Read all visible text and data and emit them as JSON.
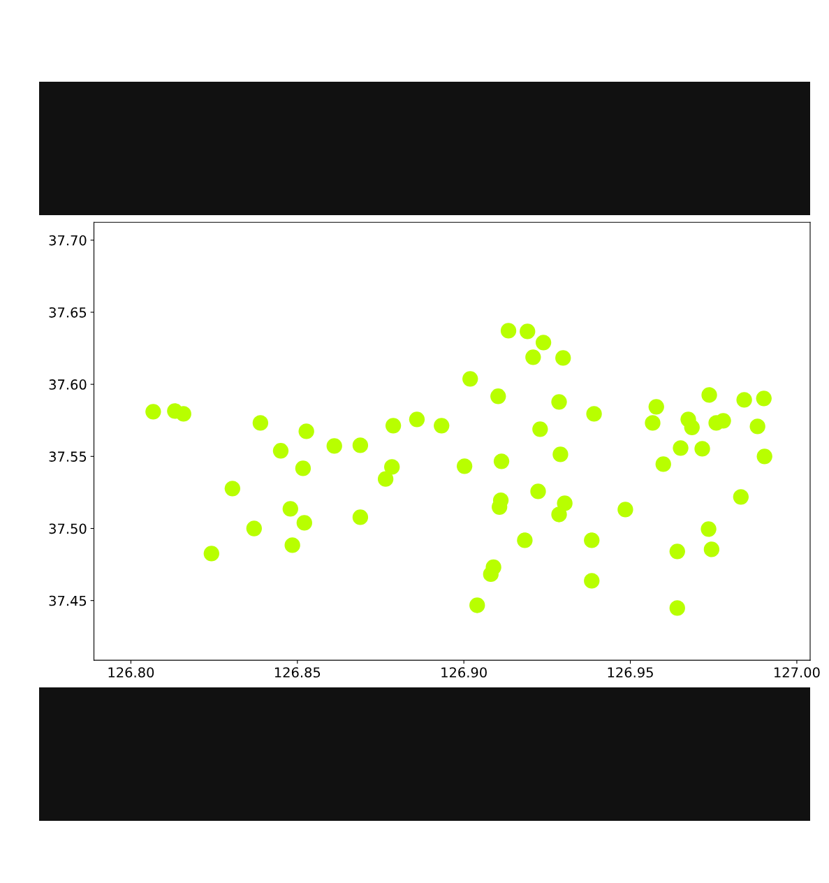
{
  "chart_data": {
    "type": "scatter",
    "color": "#b8ff00",
    "marker": "circle",
    "x": [
      126.8067,
      126.8132,
      126.8158,
      126.8389,
      126.8527,
      126.845,
      126.8611,
      126.8689,
      126.8517,
      126.8305,
      126.8479,
      126.8521,
      126.8689,
      126.837,
      126.8485,
      126.8242,
      126.8788,
      126.8859,
      126.8933,
      126.8784,
      126.8765,
      126.9002,
      126.9019,
      126.9103,
      126.9113,
      126.9134,
      126.9191,
      126.9239,
      126.9208,
      126.9298,
      126.9286,
      126.9229,
      126.929,
      126.9223,
      126.9111,
      126.9107,
      126.9303,
      126.9286,
      126.9183,
      126.9089,
      126.9081,
      126.904,
      126.9391,
      126.9384,
      126.9384,
      126.9578,
      126.9567,
      126.9599,
      126.9485,
      126.9737,
      126.9674,
      126.9685,
      126.9758,
      126.9779,
      126.9651,
      126.9716,
      126.9842,
      126.9901,
      126.9882,
      126.9903,
      126.9832,
      126.9735,
      126.9641,
      126.9744,
      126.9641
    ],
    "values": [
      37.581,
      37.5815,
      37.5795,
      37.5732,
      37.5674,
      37.5539,
      37.5572,
      37.5577,
      37.5417,
      37.5277,
      37.5136,
      37.5039,
      37.5078,
      37.5,
      37.4884,
      37.4826,
      37.5713,
      37.5757,
      37.5713,
      37.5427,
      37.5343,
      37.5432,
      37.6038,
      37.5917,
      37.5466,
      37.6372,
      37.6367,
      37.629,
      37.6188,
      37.6183,
      37.5878,
      37.5689,
      37.5514,
      37.5257,
      37.5196,
      37.5149,
      37.5175,
      37.5097,
      37.4918,
      37.4731,
      37.4683,
      37.4467,
      37.5795,
      37.4918,
      37.4637,
      37.5844,
      37.5732,
      37.5446,
      37.5131,
      37.5926,
      37.5757,
      37.5701,
      37.5732,
      37.5747,
      37.5558,
      37.5553,
      37.5892,
      37.5902,
      37.5708,
      37.55,
      37.5219,
      37.4996,
      37.4841,
      37.4855,
      37.4448
    ],
    "xlim": [
      126.7889,
      127.004
    ],
    "ylim": [
      37.4086,
      37.7124
    ],
    "xticks": [
      {
        "value": 126.8,
        "label": "126.80"
      },
      {
        "value": 126.85,
        "label": "126.85"
      },
      {
        "value": 126.9,
        "label": "126.90"
      },
      {
        "value": 126.95,
        "label": "126.95"
      },
      {
        "value": 127.0,
        "label": "127.00"
      }
    ],
    "yticks": [
      {
        "value": 37.45,
        "label": "37.45"
      },
      {
        "value": 37.5,
        "label": "37.50"
      },
      {
        "value": 37.55,
        "label": "37.55"
      },
      {
        "value": 37.6,
        "label": "37.60"
      },
      {
        "value": 37.65,
        "label": "37.65"
      },
      {
        "value": 37.7,
        "label": "37.70"
      }
    ]
  }
}
